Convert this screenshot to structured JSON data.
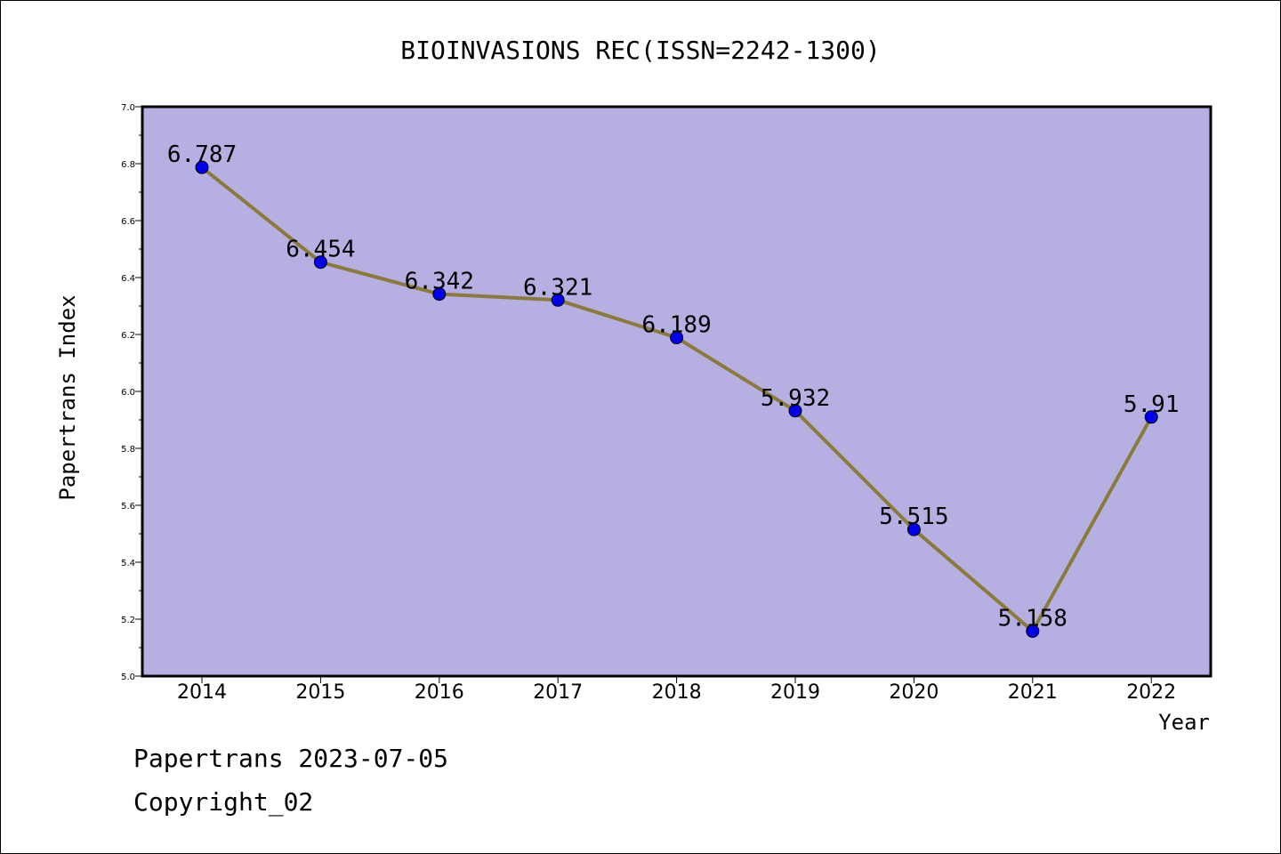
{
  "chart_data": {
    "type": "line",
    "title": "BIOINVASIONS REC(ISSN=2242-1300)",
    "xlabel": "Year",
    "ylabel": "Papertrans Index",
    "categories": [
      "2014",
      "2015",
      "2016",
      "2017",
      "2018",
      "2019",
      "2020",
      "2021",
      "2022"
    ],
    "series": [
      {
        "values": [
          6.787,
          6.454,
          6.342,
          6.321,
          6.189,
          5.932,
          5.515,
          5.158,
          5.91
        ]
      }
    ],
    "data_labels": [
      "6.787",
      "6.454",
      "6.342",
      "6.321",
      "6.189",
      "5.932",
      "5.515",
      "5.158",
      "5.91"
    ],
    "ylim": [
      5.0,
      7.0
    ],
    "yticks": [
      "5.0",
      "5.2",
      "5.4",
      "5.6",
      "5.8",
      "6.0",
      "6.2",
      "6.4",
      "6.6",
      "6.8",
      "7.0"
    ],
    "grid": false,
    "legend": "none",
    "colors": {
      "plot_background": "#b5afe2",
      "line": "#8b7a3a",
      "marker": "#0000ee"
    }
  },
  "footer": {
    "line1": "Papertrans 2023-07-05",
    "line2": "Copyright_02"
  }
}
